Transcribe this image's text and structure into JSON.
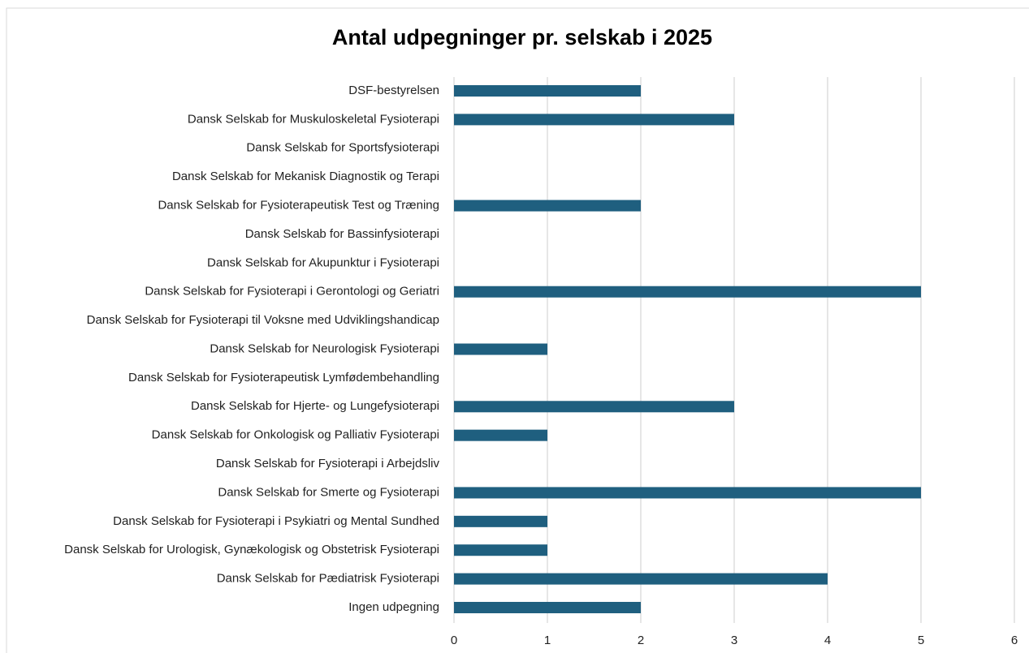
{
  "chart_data": {
    "type": "hbar",
    "title": "Antal udpegninger pr. selskab i 2025",
    "categories": [
      "DSF-bestyrelsen",
      "Dansk Selskab for Muskuloskeletal Fysioterapi",
      "Dansk Selskab for Sportsfysioterapi",
      "Dansk Selskab for Mekanisk Diagnostik og Terapi",
      "Dansk Selskab for Fysioterapeutisk Test og Træning",
      "Dansk Selskab for Bassinfysioterapi",
      "Dansk Selskab for Akupunktur i Fysioterapi",
      "Dansk Selskab for Fysioterapi i Gerontologi og Geriatri",
      "Dansk Selskab for Fysioterapi til Voksne med Udviklingshandicap",
      "Dansk Selskab for Neurologisk Fysioterapi",
      "Dansk Selskab for Fysioterapeutisk Lymfødembehandling",
      "Dansk Selskab for Hjerte- og Lungefysioterapi",
      "Dansk Selskab for Onkologisk og Palliativ Fysioterapi",
      "Dansk Selskab for Fysioterapi i Arbejdsliv",
      "Dansk Selskab for Smerte og Fysioterapi",
      "Dansk Selskab for Fysioterapi i Psykiatri og Mental Sundhed",
      "Dansk Selskab for Urologisk, Gynækologisk og Obstetrisk Fysioterapi",
      "Dansk Selskab for Pædiatrisk Fysioterapi",
      "Ingen udpegning"
    ],
    "values": [
      2,
      3,
      0,
      0,
      2,
      0,
      0,
      5,
      0,
      1,
      0,
      3,
      1,
      0,
      5,
      1,
      1,
      4,
      2
    ],
    "color": "#1f5f7f",
    "xlim": [
      0,
      6
    ],
    "xticks": [
      0,
      1,
      2,
      3,
      4,
      5,
      6
    ],
    "grid": true
  }
}
